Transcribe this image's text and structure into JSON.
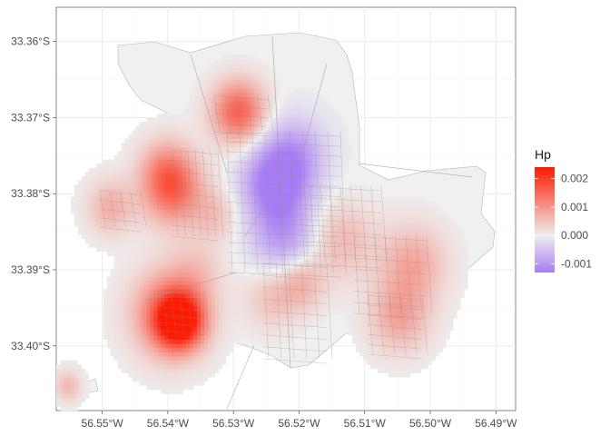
{
  "chart_data": {
    "type": "heatmap",
    "title": "",
    "xlabel": "",
    "ylabel": "",
    "x_ticks": [
      "56.55°W",
      "56.54°W",
      "56.53°W",
      "56.52°W",
      "56.51°W",
      "56.50°W",
      "56.49°W"
    ],
    "x_tick_values": [
      -56.55,
      -56.54,
      -56.53,
      -56.52,
      -56.51,
      -56.5,
      -56.49
    ],
    "y_ticks": [
      "33.36°S",
      "33.37°S",
      "33.38°S",
      "33.39°S",
      "33.40°S"
    ],
    "y_tick_values": [
      -33.36,
      -33.37,
      -33.38,
      -33.39,
      -33.4
    ],
    "xlim": [
      -56.557,
      -56.487
    ],
    "ylim": [
      -33.4085,
      -33.3555
    ],
    "grid": true,
    "legend": {
      "title": "Hp",
      "position": "right",
      "labels": [
        "0.002",
        "0.001",
        "0.000",
        "-0.001"
      ],
      "breaks": [
        0.002,
        0.001,
        0.0,
        -0.001
      ],
      "range": [
        -0.0013,
        0.0024
      ],
      "colors": {
        "low": "#a87cf6",
        "mid": "#eeeeee",
        "high": "#ff1a00"
      }
    },
    "hotspots": [
      {
        "lon": -56.5385,
        "lat": -33.397,
        "value": 0.0024,
        "spread": 0.0035
      },
      {
        "lon": -56.54,
        "lat": -33.396,
        "value": 0.0014,
        "spread": 0.0055
      },
      {
        "lon": -56.5295,
        "lat": -33.3695,
        "value": 0.0016,
        "spread": 0.004
      },
      {
        "lon": -56.5395,
        "lat": -33.38,
        "value": 0.0013,
        "spread": 0.0045
      },
      {
        "lon": -56.5405,
        "lat": -33.377,
        "value": 0.0008,
        "spread": 0.004
      },
      {
        "lon": -56.533,
        "lat": -33.383,
        "value": 0.0005,
        "spread": 0.0035
      },
      {
        "lon": -56.549,
        "lat": -33.382,
        "value": 0.0007,
        "spread": 0.0035
      },
      {
        "lon": -56.5555,
        "lat": -33.4055,
        "value": 0.0006,
        "spread": 0.002
      },
      {
        "lon": -56.514,
        "lat": -33.3865,
        "value": 0.0006,
        "spread": 0.005
      },
      {
        "lon": -56.503,
        "lat": -33.3895,
        "value": 0.0008,
        "spread": 0.005
      },
      {
        "lon": -56.505,
        "lat": -33.3965,
        "value": 0.0008,
        "spread": 0.0045
      },
      {
        "lon": -56.52,
        "lat": -33.392,
        "value": 0.0007,
        "spread": 0.0035
      },
      {
        "lon": -56.5245,
        "lat": -33.394,
        "value": 0.0005,
        "spread": 0.004
      },
      {
        "lon": -56.536,
        "lat": -33.3905,
        "value": 0.0004,
        "spread": 0.004
      },
      {
        "lon": -56.524,
        "lat": -33.379,
        "value": -0.0013,
        "spread": 0.005
      },
      {
        "lon": -56.5225,
        "lat": -33.386,
        "value": -0.0009,
        "spread": 0.005
      },
      {
        "lon": -56.521,
        "lat": -33.375,
        "value": -0.0008,
        "spread": 0.005
      }
    ]
  }
}
